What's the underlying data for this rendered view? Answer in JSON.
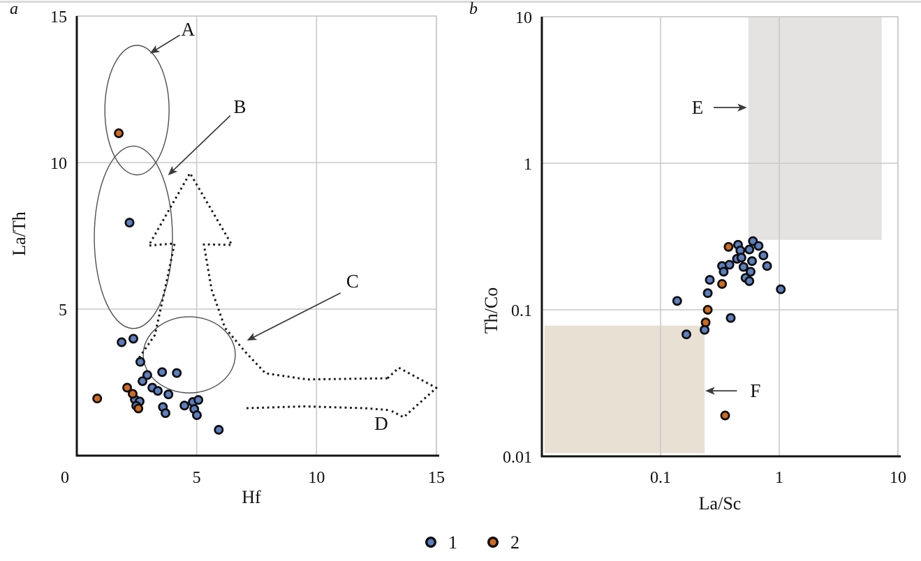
{
  "figure": {
    "background": "#ffffff",
    "top_rule_color": "#d9d9d9"
  },
  "style": {
    "grid_color": "#c9c9c9",
    "frame_color": "#c2c2c2",
    "axis_color": "#141414",
    "ellipse_color": "#4f4f4f",
    "dotted_color": "#1b1b1b",
    "arrow_color": "#3a3a3a",
    "point_stroke": "#0e0e0e",
    "series1_color": "#5b7fc0",
    "series2_color": "#d06a1f",
    "region_E_color": "#e4e3e2",
    "region_F_color": "#e8e0d3"
  },
  "legend": {
    "items": [
      {
        "label": "1",
        "color": "#5b7fc0"
      },
      {
        "label": "2",
        "color": "#d06a1f"
      }
    ]
  },
  "chart_data": [
    {
      "panel_label": "a",
      "type": "scatter",
      "xlabel": "Hf",
      "ylabel": "La/Th",
      "xscale": "linear",
      "yscale": "linear",
      "xlim": [
        0,
        15
      ],
      "ylim": [
        0,
        15
      ],
      "grid": true,
      "xticks": [
        {
          "v": 0,
          "label": "0"
        },
        {
          "v": 5,
          "label": "5"
        },
        {
          "v": 10,
          "label": "10"
        },
        {
          "v": 15,
          "label": "15"
        }
      ],
      "yticks": [
        {
          "v": 5,
          "label": "5"
        },
        {
          "v": 10,
          "label": "10"
        },
        {
          "v": 15,
          "label": "15"
        }
      ],
      "series": [
        {
          "name": "1",
          "color": "#5b7fc0",
          "points": [
            [
              2.2,
              7.95
            ],
            [
              1.87,
              3.87
            ],
            [
              2.36,
              3.99
            ],
            [
              2.65,
              3.2
            ],
            [
              2.94,
              2.75
            ],
            [
              3.56,
              2.85
            ],
            [
              4.17,
              2.82
            ],
            [
              2.74,
              2.54
            ],
            [
              3.15,
              2.32
            ],
            [
              3.38,
              2.21
            ],
            [
              3.82,
              2.09
            ],
            [
              2.42,
              1.92
            ],
            [
              2.62,
              1.85
            ],
            [
              2.48,
              1.7
            ],
            [
              3.59,
              1.66
            ],
            [
              3.7,
              1.45
            ],
            [
              4.49,
              1.71
            ],
            [
              4.84,
              1.83
            ],
            [
              5.07,
              1.9
            ],
            [
              4.9,
              1.59
            ],
            [
              5.01,
              1.38
            ],
            [
              5.92,
              0.88
            ]
          ]
        },
        {
          "name": "2",
          "color": "#d06a1f",
          "points": [
            [
              1.75,
              11.0
            ],
            [
              0.85,
              1.95
            ],
            [
              2.1,
              2.32
            ],
            [
              2.33,
              2.11
            ],
            [
              2.57,
              1.61
            ]
          ]
        }
      ],
      "ellipses": [
        {
          "label": "A",
          "cx": 2.51,
          "cy": 11.79,
          "rx": 1.34,
          "ry": 2.21
        },
        {
          "label": "B",
          "cx": 2.36,
          "cy": 7.45,
          "rx": 1.63,
          "ry": 3.11
        },
        {
          "label": "C",
          "cx": 4.69,
          "cy": 3.44,
          "rx": 1.92,
          "ry": 1.3
        }
      ],
      "letters": [
        {
          "text": "A",
          "x": 4.64,
          "y": 14.55
        },
        {
          "text": "B",
          "x": 6.8,
          "y": 11.9
        },
        {
          "text": "C",
          "x": 11.5,
          "y": 5.95
        },
        {
          "text": "D",
          "x": 12.7,
          "y": 1.1
        }
      ],
      "arrows": [
        {
          "x1": 4.3,
          "y1": 14.35,
          "x2": 3.1,
          "y2": 13.75
        },
        {
          "x1": 6.4,
          "y1": 11.6,
          "x2": 3.85,
          "y2": 9.6
        },
        {
          "x1": 11.0,
          "y1": 5.55,
          "x2": 7.15,
          "y2": 3.95
        }
      ],
      "dotted_paths": [
        {
          "name": "upward-trend-arrow",
          "points": [
            [
              2.48,
              3.2
            ],
            [
              3.26,
              4.12
            ],
            [
              3.64,
              5.55
            ],
            [
              4.08,
              7.24
            ],
            [
              3.0,
              7.17
            ],
            [
              4.72,
              9.64
            ],
            [
              6.47,
              7.19
            ],
            [
              5.3,
              7.21
            ],
            [
              5.62,
              5.67
            ],
            [
              6.18,
              4.36
            ],
            [
              7.05,
              3.52
            ],
            [
              7.87,
              2.81
            ],
            [
              9.61,
              2.6
            ],
            [
              12.96,
              2.64
            ]
          ]
        },
        {
          "name": "rightward-trend-lower-line",
          "points": [
            [
              7.08,
              1.62
            ],
            [
              9.5,
              1.68
            ],
            [
              12.0,
              1.62
            ],
            [
              13.1,
              1.55
            ]
          ]
        },
        {
          "name": "rightward-trend-arrowhead",
          "points": [
            [
              12.96,
              2.64
            ],
            [
              13.43,
              3.0
            ],
            [
              15.0,
              2.31
            ],
            [
              13.63,
              1.31
            ],
            [
              13.14,
              1.52
            ]
          ]
        }
      ]
    },
    {
      "panel_label": "b",
      "type": "scatter",
      "xlabel": "La/Sc",
      "ylabel": "Th/Co",
      "xscale": "log",
      "yscale": "log",
      "xlim": [
        0.01,
        10
      ],
      "ylim": [
        0.01,
        10
      ],
      "grid": true,
      "xticks": [
        {
          "v": 0.1,
          "label": "0.1"
        },
        {
          "v": 1,
          "label": "1"
        },
        {
          "v": 10,
          "label": "10"
        }
      ],
      "yticks": [
        {
          "v": 0.01,
          "label": "0.01"
        },
        {
          "v": 0.1,
          "label": "0.1"
        },
        {
          "v": 1,
          "label": "1"
        },
        {
          "v": 10,
          "label": "10"
        }
      ],
      "regions": [
        {
          "name": "E-field",
          "color": "#e4e3e2",
          "x": [
            0.55,
            7.3
          ],
          "y": [
            0.3,
            10
          ]
        },
        {
          "name": "F-field",
          "color": "#e8e0d3",
          "x": [
            0.0105,
            0.235
          ],
          "y": [
            0.0105,
            0.078
          ]
        }
      ],
      "series": [
        {
          "name": "1",
          "color": "#5b7fc0",
          "points": [
            [
              0.138,
              0.115
            ],
            [
              0.165,
              0.068
            ],
            [
              0.235,
              0.073
            ],
            [
              0.26,
              0.16
            ],
            [
              0.25,
              0.13
            ],
            [
              0.39,
              0.088
            ],
            [
              0.33,
              0.199
            ],
            [
              0.34,
              0.182
            ],
            [
              0.38,
              0.203
            ],
            [
              0.44,
              0.223
            ],
            [
              0.45,
              0.278
            ],
            [
              0.47,
              0.254
            ],
            [
              0.48,
              0.227
            ],
            [
              0.5,
              0.196
            ],
            [
              0.52,
              0.165
            ],
            [
              0.56,
              0.157
            ],
            [
              0.56,
              0.258
            ],
            [
              0.574,
              0.182
            ],
            [
              0.59,
              0.215
            ],
            [
              0.6,
              0.294
            ],
            [
              0.67,
              0.273
            ],
            [
              0.735,
              0.235
            ],
            [
              0.79,
              0.199
            ],
            [
              1.03,
              0.138
            ]
          ]
        },
        {
          "name": "2",
          "color": "#d06a1f",
          "points": [
            [
              0.374,
              0.269
            ],
            [
              0.33,
              0.15
            ],
            [
              0.25,
              0.1
            ],
            [
              0.24,
              0.082
            ],
            [
              0.35,
              0.019
            ]
          ]
        }
      ],
      "letters": [
        {
          "text": "E",
          "x": 0.205,
          "y": 2.4
        },
        {
          "text": "F",
          "x": 0.63,
          "y": 0.028
        }
      ],
      "arrows": [
        {
          "x1": 0.28,
          "y1": 2.4,
          "x2": 0.52,
          "y2": 2.4
        },
        {
          "x1": 0.44,
          "y1": 0.028,
          "x2": 0.245,
          "y2": 0.028
        }
      ]
    }
  ]
}
